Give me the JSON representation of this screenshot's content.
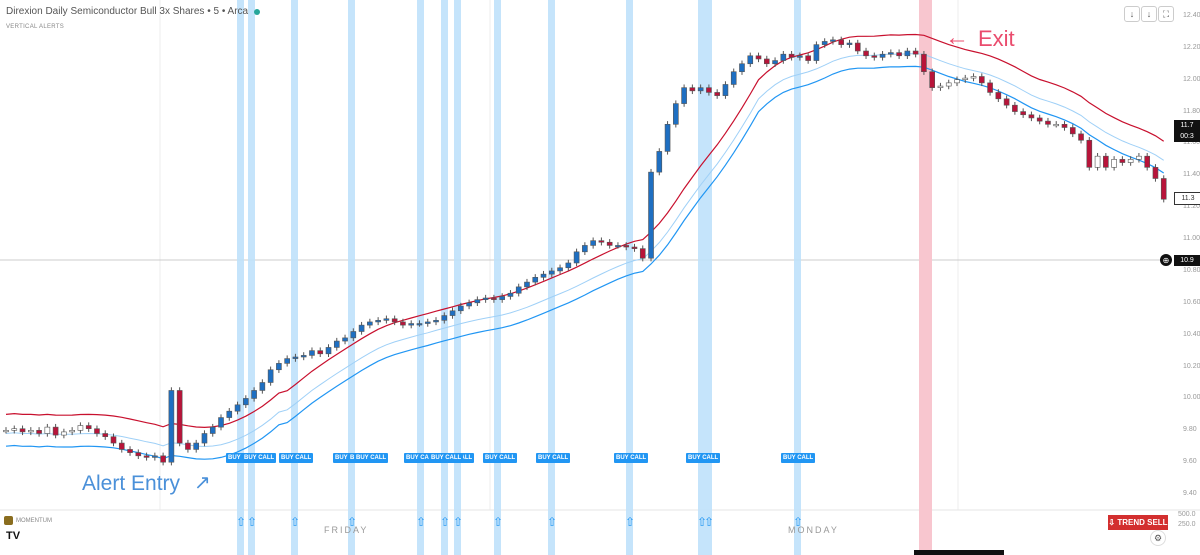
{
  "header": {
    "title": "Direxion Daily Semiconductor Bull 3x Shares • 5 • Arca",
    "subtitle": "VERTICAL ALERTS"
  },
  "toolbar": {
    "buttons": [
      "↓",
      "↓",
      "⛶"
    ]
  },
  "y_axis": {
    "ticks": [
      "12.40",
      "12.20",
      "12.00",
      "11.80",
      "11.60",
      "11.40",
      "11.20",
      "11.00",
      "10.80",
      "10.60",
      "10.40",
      "10.20",
      "10.00",
      "9.80",
      "9.60",
      "9.40"
    ],
    "price_badge_top": "11.7",
    "price_badge_top2": "00:3",
    "price_badge_mid": "11.3",
    "crosshair_badge": "10.9"
  },
  "annotations": {
    "alert_entry": "Alert Entry",
    "exit": "Exit"
  },
  "buy_calls": [
    "BUY CALL",
    "BUY CALL",
    "BUY CALL",
    "BUY CALL",
    "BUY CALL",
    "BUY CALL",
    "BUY CALL",
    "BUY CALL",
    "BUY CALL",
    "BUY CALL",
    "BUY CALL",
    "B BUY CALL",
    "BUY CALL"
  ],
  "day_labels": {
    "friday": "FRIDAY",
    "monday": "MONDAY"
  },
  "indicator": {
    "name": "MOMENTUM",
    "trend_badge": "TREND SELL",
    "values": [
      "500.0",
      "250.0"
    ]
  },
  "colors": {
    "up": "#1e6fc2",
    "neutral": "#ffffff",
    "down": "#b8143a",
    "highlight": "#bfe1fb",
    "exit_band": "#f8c6cf",
    "channel_red": "#c8102e",
    "channel_blue": "#2196f3"
  },
  "chart_data": {
    "type": "candlestick",
    "title": "Direxion Daily Semiconductor Bull 3x Shares",
    "interval": "5",
    "ylim": [
      9.3,
      12.5
    ],
    "closes": [
      9.8,
      9.81,
      9.79,
      9.8,
      9.78,
      9.82,
      9.77,
      9.79,
      9.8,
      9.83,
      9.81,
      9.78,
      9.76,
      9.72,
      9.68,
      9.66,
      9.64,
      9.63,
      9.64,
      9.6,
      10.05,
      9.72,
      9.68,
      9.72,
      9.78,
      9.82,
      9.88,
      9.92,
      9.96,
      10.0,
      10.05,
      10.1,
      10.18,
      10.22,
      10.25,
      10.26,
      10.27,
      10.3,
      10.28,
      10.32,
      10.36,
      10.38,
      10.42,
      10.46,
      10.48,
      10.49,
      10.5,
      10.48,
      10.46,
      10.47,
      10.47,
      10.48,
      10.49,
      10.52,
      10.55,
      10.58,
      10.6,
      10.62,
      10.63,
      10.62,
      10.64,
      10.66,
      10.7,
      10.73,
      10.76,
      10.78,
      10.8,
      10.82,
      10.85,
      10.92,
      10.96,
      10.99,
      10.98,
      10.96,
      10.96,
      10.95,
      10.94,
      10.88,
      11.42,
      11.55,
      11.72,
      11.85,
      11.95,
      11.93,
      11.95,
      11.92,
      11.9,
      11.97,
      12.05,
      12.1,
      12.15,
      12.13,
      12.1,
      12.12,
      12.16,
      12.14,
      12.15,
      12.12,
      12.22,
      12.24,
      12.25,
      12.22,
      12.23,
      12.18,
      12.15,
      12.14,
      12.16,
      12.17,
      12.15,
      12.18,
      12.16,
      12.05,
      11.95,
      11.96,
      11.98,
      12.0,
      12.01,
      12.02,
      11.98,
      11.92,
      11.88,
      11.84,
      11.8,
      11.78,
      11.76,
      11.74,
      11.72,
      11.72,
      11.7,
      11.66,
      11.62,
      11.45,
      11.52,
      11.45,
      11.5,
      11.48,
      11.5,
      11.52,
      11.45,
      11.38,
      11.25
    ]
  }
}
